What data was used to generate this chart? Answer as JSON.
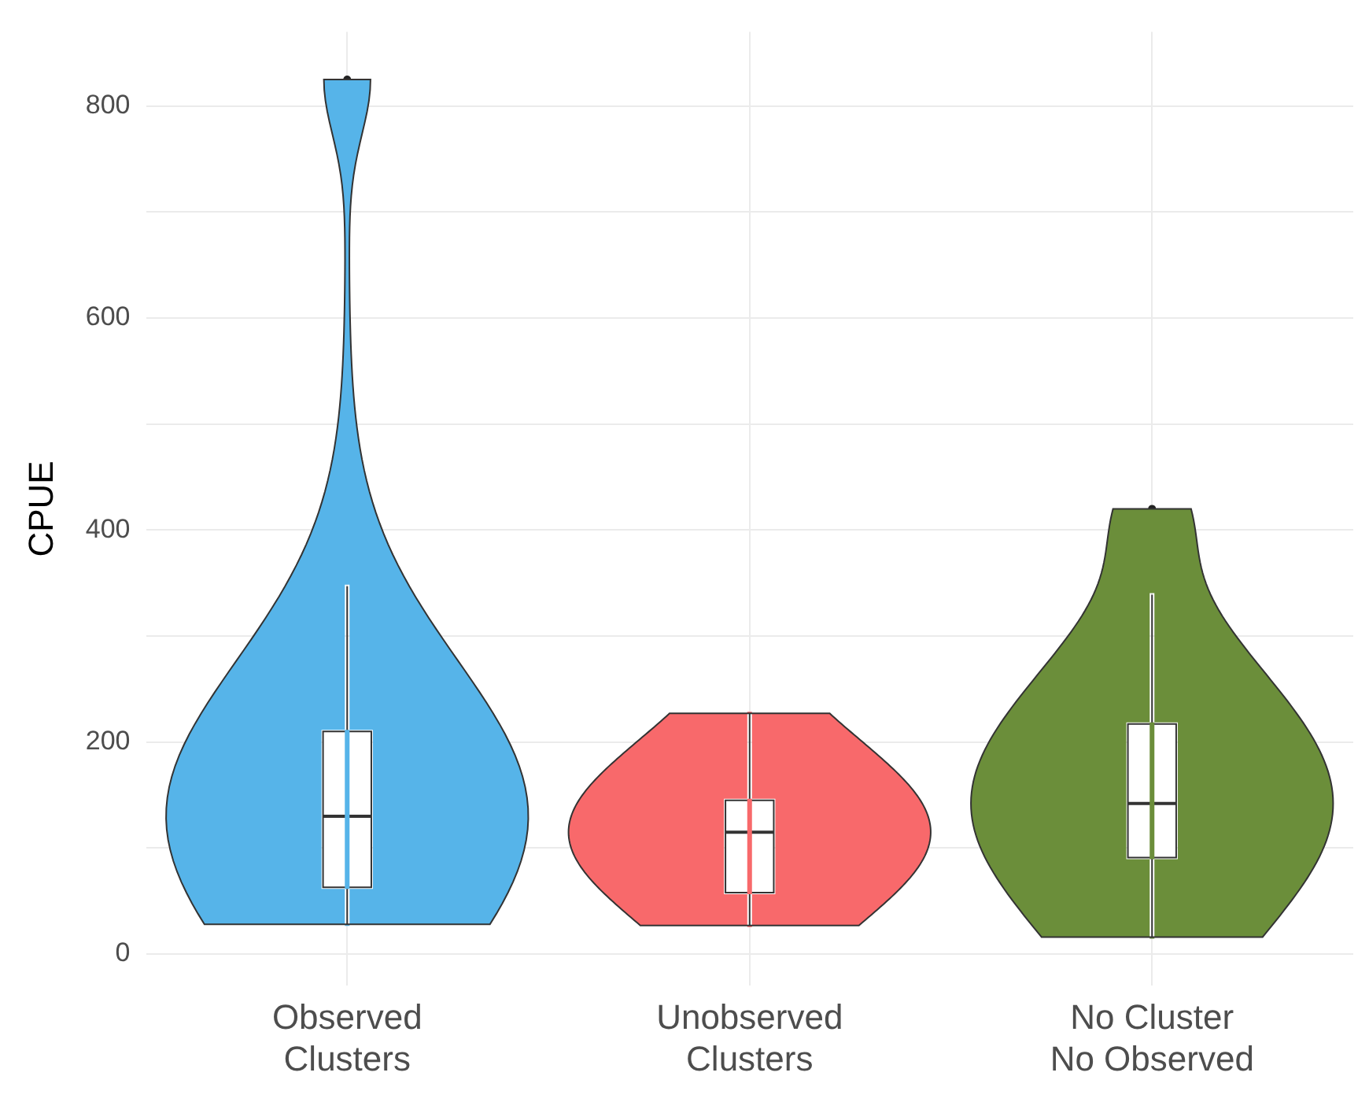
{
  "chart_data": {
    "type": "box",
    "ylabel": "CPUE",
    "categories": [
      "Observed Clusters",
      "Unobserved Clusters",
      "No Cluster No Observed"
    ],
    "colors": [
      "#56b4e9",
      "#f8696b",
      "#6b8e3a"
    ],
    "boxes": [
      {
        "low": 28,
        "q1": 63,
        "median": 130,
        "q3": 210,
        "high": 347,
        "outliers": [
          825
        ]
      },
      {
        "low": 27,
        "q1": 58,
        "median": 115,
        "q3": 145,
        "high": 227
      },
      {
        "low": 16,
        "q1": 91,
        "median": 142,
        "q3": 217,
        "high": 339,
        "outliers": [
          420
        ]
      }
    ],
    "ylim": [
      -30,
      870
    ],
    "yticks": [
      0,
      {
        "value": 100,
        "label": null
      },
      200,
      {
        "value": 300,
        "label": null
      },
      400,
      {
        "value": 500,
        "label": null
      },
      600,
      {
        "value": 700,
        "label": null
      },
      800
    ],
    "grid": true,
    "legend": false
  }
}
